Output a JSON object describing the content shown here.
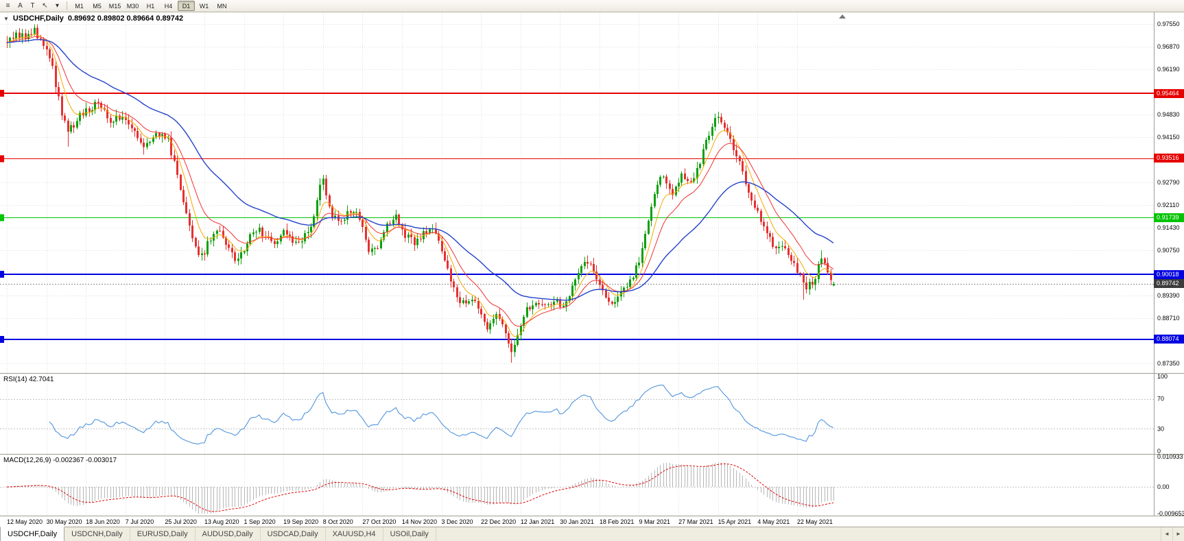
{
  "toolbar": {
    "tools": [
      {
        "name": "chart-list-icon",
        "glyph": "≡"
      },
      {
        "name": "cursor-tool-icon",
        "glyph": "A"
      },
      {
        "name": "text-tool-icon",
        "glyph": "T"
      },
      {
        "name": "crosshair-tool-icon",
        "glyph": "↖"
      },
      {
        "name": "tools-dropdown-icon",
        "glyph": "▾"
      }
    ],
    "timeframes": [
      "M1",
      "M5",
      "M15",
      "M30",
      "H1",
      "H4",
      "D1",
      "W1",
      "MN"
    ],
    "active_timeframe": "D1"
  },
  "tabbar": {
    "tabs": [
      "USDCHF,Daily",
      "USDCNH,Daily",
      "EURUSD,Daily",
      "AUDUSD,Daily",
      "USDCAD,Daily",
      "XAUUSD,H4",
      "USOil,Daily"
    ],
    "active_tab": "USDCHF,Daily",
    "scroll_left": "◄",
    "scroll_right": "►"
  },
  "chart_data": {
    "type": "candlestick",
    "symbol": "USDCHF",
    "timeframe": "Daily",
    "title": "USDCHF,Daily",
    "ohlc_text": "0.89692 0.89802 0.89664 0.89742",
    "collapse_icon": "▼",
    "last_bar": {
      "open": 0.89692,
      "high": 0.89802,
      "low": 0.89664,
      "close": 0.89742
    },
    "price_axis": {
      "ticks": [
        "0.97550",
        "0.96870",
        "0.96190",
        "0.94830",
        "0.94150",
        "0.92790",
        "0.92110",
        "0.91430",
        "0.90750",
        "0.89390",
        "0.88710",
        "0.87350"
      ],
      "max": 0.979,
      "min": 0.8706
    },
    "x_labels": [
      "12 May 2020",
      "30 May 2020",
      "18 Jun 2020",
      "7 Jul 2020",
      "25 Jul 2020",
      "13 Aug 2020",
      "1 Sep 2020",
      "19 Sep 2020",
      "8 Oct 2020",
      "27 Oct 2020",
      "14 Nov 2020",
      "3 Dec 2020",
      "22 Dec 2020",
      "12 Jan 2021",
      "30 Jan 2021",
      "18 Feb 2021",
      "9 Mar 2021",
      "27 Mar 2021",
      "15 Apr 2021",
      "4 May 2021",
      "22 May 2021"
    ],
    "bars_per_label": 13,
    "n_bars": 273,
    "price_path_anchors": [
      [
        0,
        0.97
      ],
      [
        3,
        0.9728
      ],
      [
        6,
        0.9712
      ],
      [
        9,
        0.9737
      ],
      [
        12,
        0.969
      ],
      [
        15,
        0.9622
      ],
      [
        18,
        0.9478
      ],
      [
        20,
        0.9428
      ],
      [
        23,
        0.9468
      ],
      [
        27,
        0.9502
      ],
      [
        30,
        0.9518
      ],
      [
        34,
        0.9468
      ],
      [
        38,
        0.9475
      ],
      [
        42,
        0.9438
      ],
      [
        45,
        0.939
      ],
      [
        49,
        0.9428
      ],
      [
        53,
        0.9405
      ],
      [
        56,
        0.9302
      ],
      [
        59,
        0.9178
      ],
      [
        62,
        0.9082
      ],
      [
        64,
        0.9058
      ],
      [
        67,
        0.9108
      ],
      [
        70,
        0.9138
      ],
      [
        73,
        0.9078
      ],
      [
        76,
        0.9042
      ],
      [
        79,
        0.9098
      ],
      [
        82,
        0.9138
      ],
      [
        85,
        0.9118
      ],
      [
        88,
        0.9088
      ],
      [
        91,
        0.9132
      ],
      [
        94,
        0.9108
      ],
      [
        97,
        0.9102
      ],
      [
        100,
        0.9142
      ],
      [
        102,
        0.9232
      ],
      [
        104,
        0.9292
      ],
      [
        106,
        0.9198
      ],
      [
        109,
        0.9152
      ],
      [
        112,
        0.9182
      ],
      [
        115,
        0.9198
      ],
      [
        117,
        0.9148
      ],
      [
        119,
        0.9072
      ],
      [
        122,
        0.9088
      ],
      [
        125,
        0.9148
      ],
      [
        128,
        0.9182
      ],
      [
        131,
        0.9122
      ],
      [
        134,
        0.9092
      ],
      [
        137,
        0.9132
      ],
      [
        140,
        0.9148
      ],
      [
        143,
        0.9082
      ],
      [
        146,
        0.8992
      ],
      [
        149,
        0.8912
      ],
      [
        152,
        0.8928
      ],
      [
        155,
        0.8902
      ],
      [
        158,
        0.8848
      ],
      [
        161,
        0.8882
      ],
      [
        164,
        0.8828
      ],
      [
        166,
        0.8762
      ],
      [
        168,
        0.8832
      ],
      [
        171,
        0.8902
      ],
      [
        174,
        0.8918
      ],
      [
        177,
        0.8898
      ],
      [
        180,
        0.8928
      ],
      [
        183,
        0.8908
      ],
      [
        186,
        0.8962
      ],
      [
        189,
        0.9032
      ],
      [
        191,
        0.9046
      ],
      [
        194,
        0.8988
      ],
      [
        197,
        0.8938
      ],
      [
        200,
        0.8908
      ],
      [
        203,
        0.8958
      ],
      [
        206,
        0.8988
      ],
      [
        209,
        0.9078
      ],
      [
        212,
        0.9198
      ],
      [
        214,
        0.9282
      ],
      [
        216,
        0.9302
      ],
      [
        219,
        0.9252
      ],
      [
        222,
        0.9302
      ],
      [
        225,
        0.9282
      ],
      [
        228,
        0.9342
      ],
      [
        231,
        0.9422
      ],
      [
        233,
        0.9472
      ],
      [
        235,
        0.9462
      ],
      [
        238,
        0.9402
      ],
      [
        241,
        0.9332
      ],
      [
        244,
        0.9258
      ],
      [
        247,
        0.9182
      ],
      [
        250,
        0.9122
      ],
      [
        253,
        0.9082
      ],
      [
        256,
        0.9092
      ],
      [
        258,
        0.9052
      ],
      [
        261,
        0.9002
      ],
      [
        263,
        0.8962
      ],
      [
        266,
        0.899
      ],
      [
        268,
        0.9058
      ],
      [
        270,
        0.9012
      ],
      [
        272,
        0.89742
      ]
    ],
    "wick_extremes": [
      {
        "index": 9,
        "high": 0.9754
      },
      {
        "index": 20,
        "low": 0.9386
      },
      {
        "index": 45,
        "low": 0.9362
      },
      {
        "index": 104,
        "high": 0.9302
      },
      {
        "index": 166,
        "low": 0.8737
      },
      {
        "index": 233,
        "high": 0.9486
      },
      {
        "index": 262,
        "low": 0.8927
      },
      {
        "index": 268,
        "high": 0.9075
      }
    ],
    "horizontal_levels": [
      {
        "label": "0.95464",
        "price": 0.95464,
        "color": "#e60000",
        "width": 2
      },
      {
        "label": "0.93516",
        "price": 0.93516,
        "color": "#e60000",
        "width": 1
      },
      {
        "label": "0.91739",
        "price": 0.91739,
        "color": "#00c400",
        "width": 1
      },
      {
        "label": "0.90018",
        "price": 0.90018,
        "color": "#0000e0",
        "width": 2
      },
      {
        "label": "0.88074",
        "price": 0.88074,
        "color": "#0000e0",
        "width": 2
      }
    ],
    "current_price": {
      "label": "0.89742",
      "value": 0.89742,
      "tag_color": "#3c3c3c"
    },
    "candle_colors": {
      "up": "#0da00d",
      "down": "#e53030"
    },
    "moving_averages": [
      {
        "name": "fast",
        "period": 7,
        "color": "#f5a800"
      },
      {
        "name": "medium",
        "period": 14,
        "color": "#f03030"
      },
      {
        "name": "slow",
        "period": 40,
        "color": "#2141c8"
      }
    ],
    "indicators": {
      "rsi": {
        "label": "RSI(14) 42.7041",
        "period": 14,
        "current": 42.7041,
        "line_color": "#4f94dd",
        "guide_levels": [
          70,
          30
        ],
        "axis_ticks": [
          {
            "label": "100",
            "value": 100
          },
          {
            "label": "70",
            "value": 70
          },
          {
            "label": "30",
            "value": 30
          },
          {
            "label": "0",
            "value": 0
          }
        ]
      },
      "macd": {
        "label": "MACD(12,26,9) -0.002367 -0.003017",
        "params": [
          12,
          26,
          9
        ],
        "current_macd": -0.002367,
        "current_signal": -0.003017,
        "max": 0.010933,
        "min": -0.009653,
        "histogram_color": "#b6b6b6",
        "signal_color": "#e00000",
        "axis_ticks": [
          {
            "label": "0.010933",
            "value": 0.010933
          },
          {
            "label": "0.00",
            "value": 0
          },
          {
            "label": "-0.009653",
            "value": -0.009653
          }
        ]
      }
    }
  }
}
